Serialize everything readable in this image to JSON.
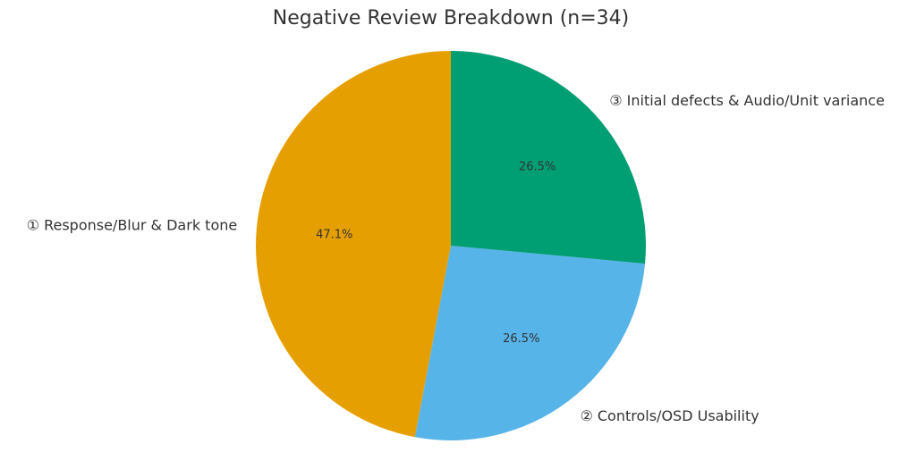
{
  "chart_data": {
    "type": "pie",
    "title": "Negative Review Breakdown (n=34)",
    "categories": [
      "① Response/Blur & Dark tone",
      "② Controls/OSD Usability",
      "③ Initial defects & Audio/Unit variance"
    ],
    "values": [
      47.1,
      26.5,
      26.5
    ],
    "value_labels": [
      "47.1%",
      "26.5%",
      "26.5%"
    ],
    "colors": [
      "#E69F00",
      "#56B4E9",
      "#009E73"
    ]
  }
}
